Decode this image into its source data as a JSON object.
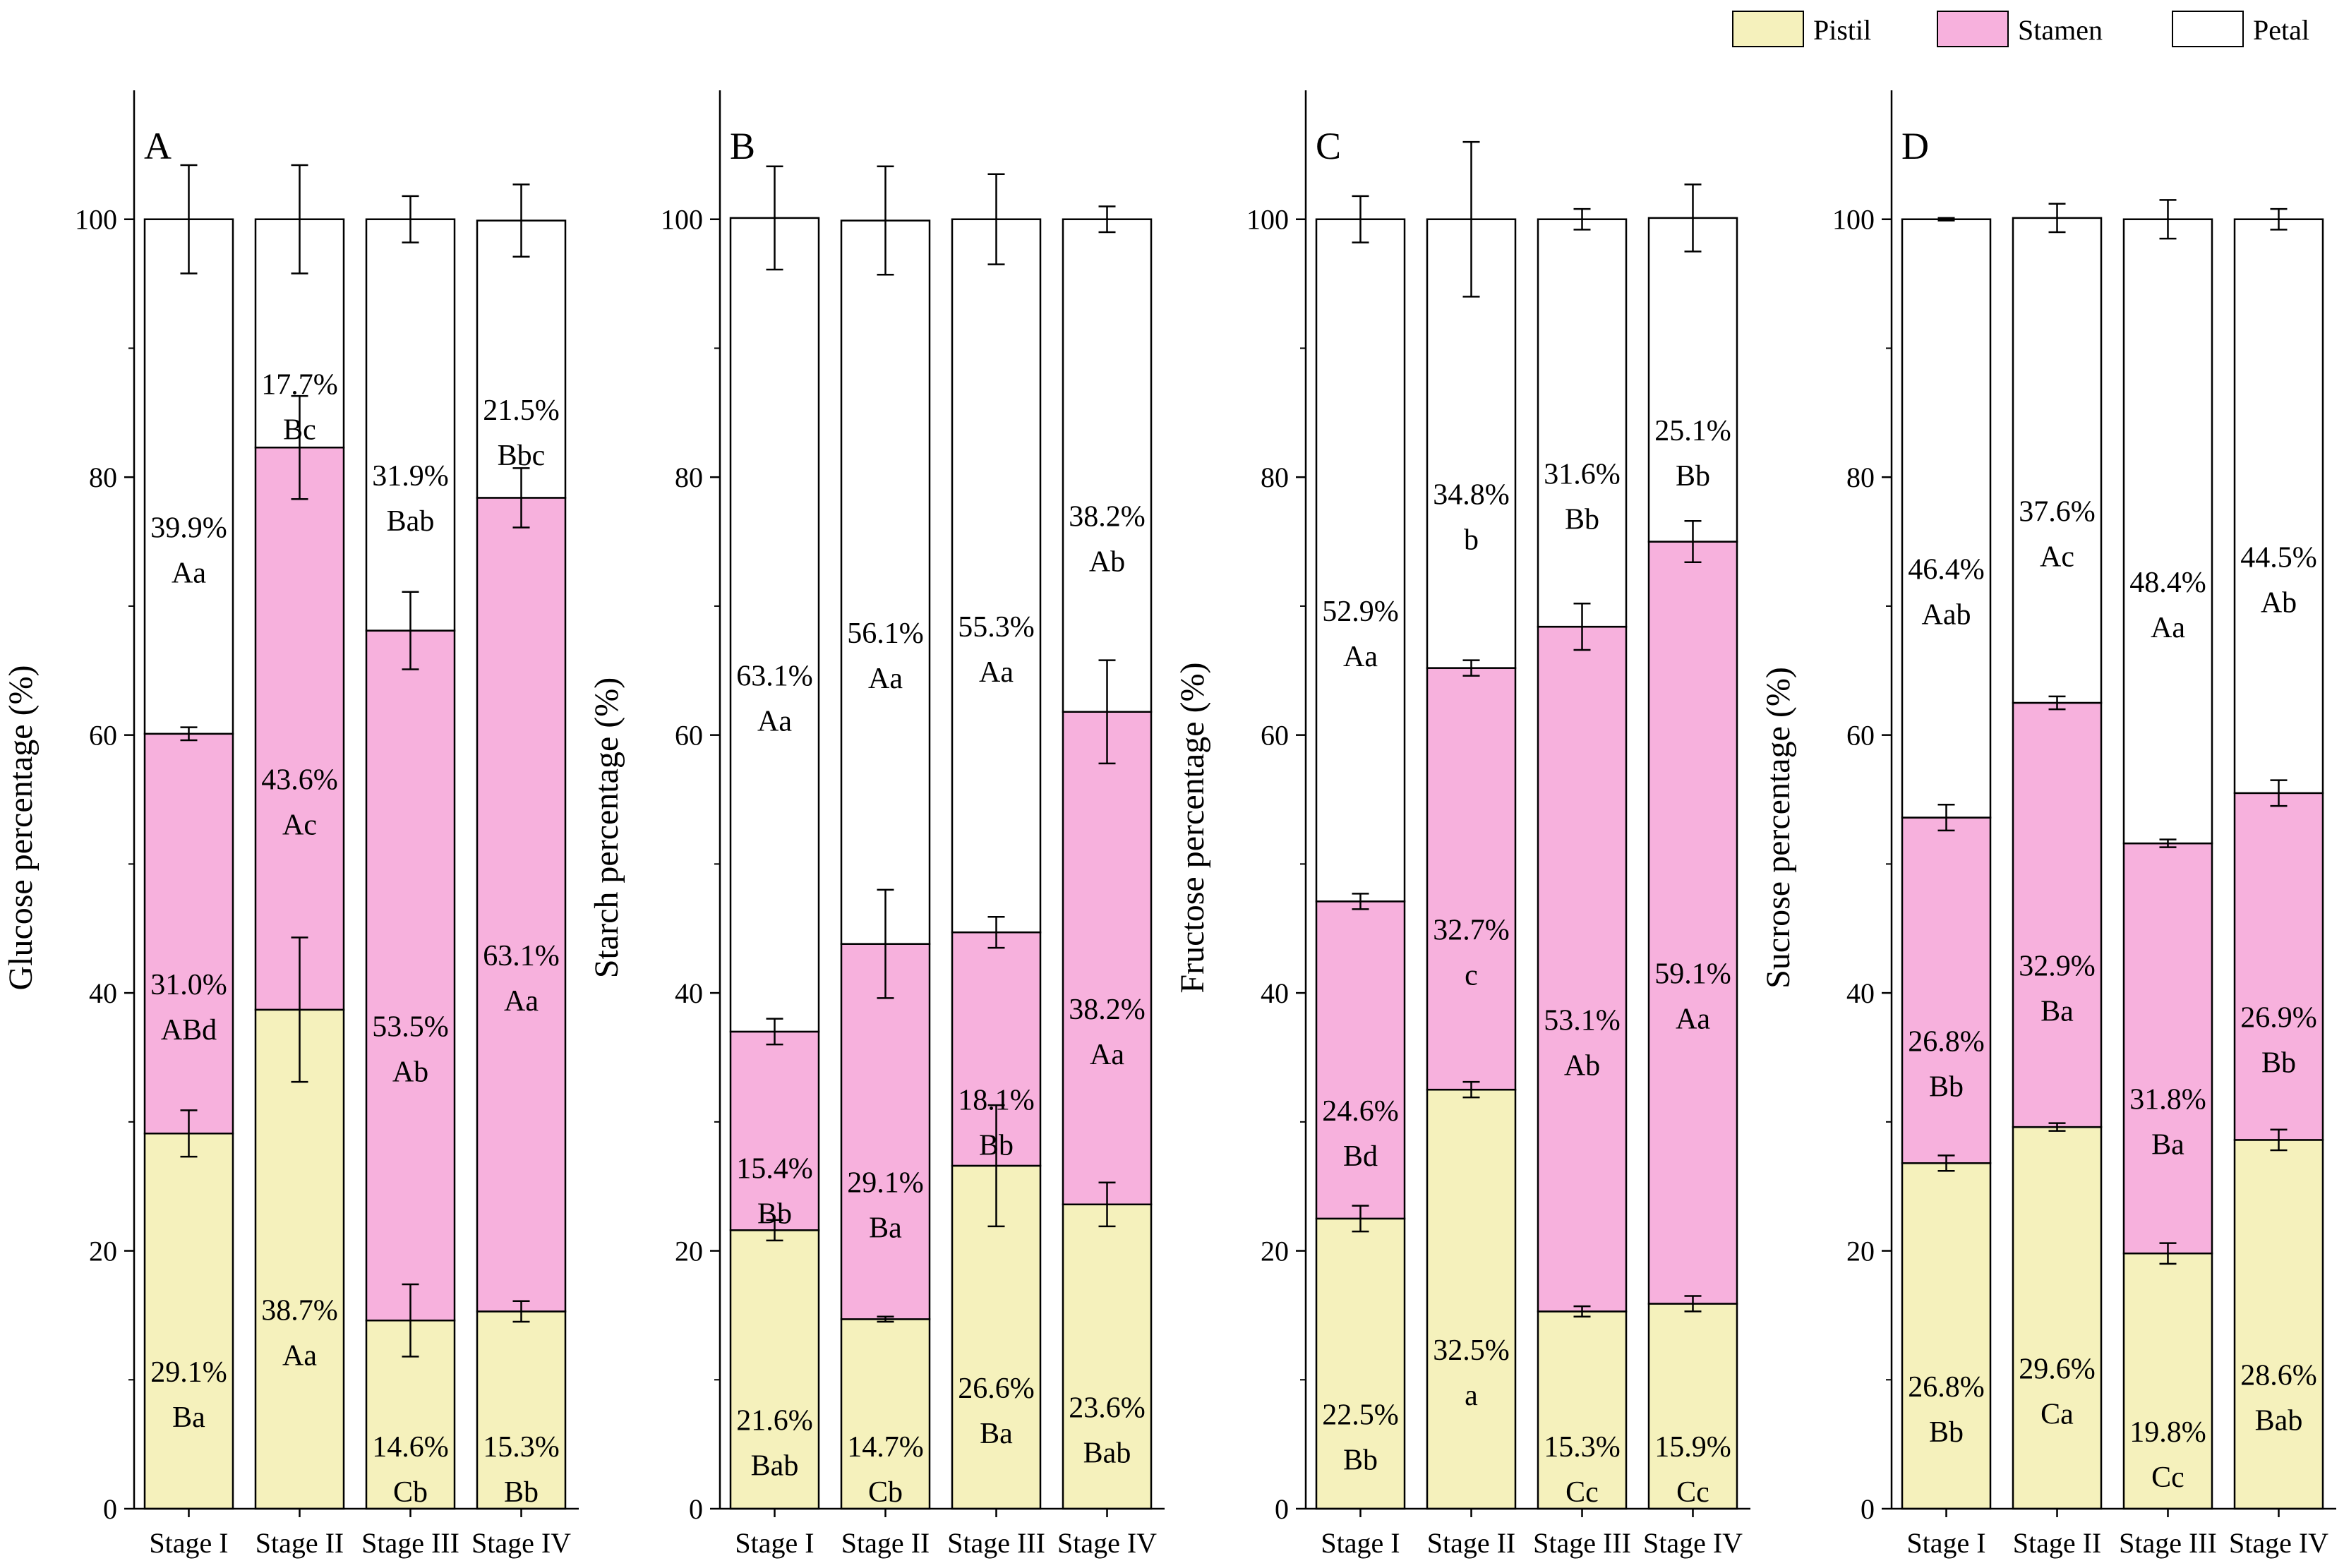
{
  "colors": {
    "pistil": "#f5f1bc",
    "stamen": "#f7b1dd",
    "petal": "#ffffff",
    "stroke": "#000000"
  },
  "legend": [
    {
      "key": "pistil",
      "label": "Pistil"
    },
    {
      "key": "stamen",
      "label": "Stamen"
    },
    {
      "key": "petal",
      "label": "Petal"
    }
  ],
  "chart_data": [
    {
      "type": "bar",
      "stacked": true,
      "panel": "A",
      "ylabel": "Glucose percentage (%)",
      "ylim": [
        0,
        110
      ],
      "yticks": [
        0,
        20,
        40,
        60,
        80,
        100
      ],
      "categories": [
        "Stage I",
        "Stage II",
        "Stage III",
        "Stage IV"
      ],
      "series": [
        {
          "name": "Pistil",
          "key": "pistil",
          "values": [
            29.1,
            38.7,
            14.6,
            15.3
          ],
          "errors": [
            1.8,
            5.6,
            2.8,
            0.8
          ],
          "labels": [
            "29.1%",
            "38.7%",
            "14.6%",
            "15.3%"
          ],
          "letters": [
            "Ba",
            "Aa",
            "Cb",
            "Bb"
          ]
        },
        {
          "name": "Stamen",
          "key": "stamen",
          "values": [
            31.0,
            43.6,
            53.5,
            63.1
          ],
          "errors": [
            0.5,
            4.0,
            3.0,
            2.3
          ],
          "labels": [
            "31.0%",
            "43.6%",
            "53.5%",
            "63.1%"
          ],
          "letters": [
            "ABd",
            "Ac",
            "Ab",
            "Aa"
          ]
        },
        {
          "name": "Petal",
          "key": "petal",
          "values": [
            39.9,
            17.7,
            31.9,
            21.5
          ],
          "errors": [
            4.2,
            4.2,
            1.8,
            2.8
          ],
          "labels": [
            "39.9%",
            "17.7%",
            "31.9%",
            "21.5%"
          ],
          "letters": [
            "Aa",
            "Bc",
            "Bab",
            "Bbc"
          ]
        }
      ]
    },
    {
      "type": "bar",
      "stacked": true,
      "panel": "B",
      "ylabel": "Starch percentage (%)",
      "ylim": [
        0,
        110
      ],
      "yticks": [
        0,
        20,
        40,
        60,
        80,
        100
      ],
      "categories": [
        "Stage I",
        "Stage II",
        "Stage III",
        "Stage IV"
      ],
      "series": [
        {
          "name": "Pistil",
          "key": "pistil",
          "values": [
            21.6,
            14.7,
            26.6,
            23.6
          ],
          "errors": [
            0.8,
            0.2,
            4.7,
            1.7
          ],
          "labels": [
            "21.6%",
            "14.7%",
            "26.6%",
            "23.6%"
          ],
          "letters": [
            "Bab",
            "Cb",
            "Ba",
            "Bab"
          ]
        },
        {
          "name": "Stamen",
          "key": "stamen",
          "values": [
            15.4,
            29.1,
            18.1,
            38.2
          ],
          "errors": [
            1.0,
            4.2,
            1.2,
            4.0
          ],
          "labels": [
            "15.4%",
            "29.1%",
            "18.1%",
            "38.2%"
          ],
          "letters": [
            "Bb",
            "Ba",
            "Bb",
            "Aa"
          ]
        },
        {
          "name": "Petal",
          "key": "petal",
          "values": [
            63.1,
            56.1,
            55.3,
            38.2
          ],
          "errors": [
            4.0,
            4.2,
            3.5,
            1.0
          ],
          "labels": [
            "63.1%",
            "56.1%",
            "55.3%",
            "38.2%"
          ],
          "letters": [
            "Aa",
            "Aa",
            "Aa",
            "Ab"
          ]
        }
      ]
    },
    {
      "type": "bar",
      "stacked": true,
      "panel": "C",
      "ylabel": "Fructose percentage (%)",
      "ylim": [
        0,
        110
      ],
      "yticks": [
        0,
        20,
        40,
        60,
        80,
        100
      ],
      "categories": [
        "Stage I",
        "Stage II",
        "Stage III",
        "Stage IV"
      ],
      "series": [
        {
          "name": "Pistil",
          "key": "pistil",
          "values": [
            22.5,
            32.5,
            15.3,
            15.9
          ],
          "errors": [
            1.0,
            0.6,
            0.4,
            0.6
          ],
          "labels": [
            "22.5%",
            "32.5%",
            "15.3%",
            "15.9%"
          ],
          "letters": [
            "Bb",
            "a",
            "Cc",
            "Cc"
          ]
        },
        {
          "name": "Stamen",
          "key": "stamen",
          "values": [
            24.6,
            32.7,
            53.1,
            59.1
          ],
          "errors": [
            0.6,
            0.6,
            1.8,
            1.6
          ],
          "labels": [
            "24.6%",
            "32.7%",
            "53.1%",
            "59.1%"
          ],
          "letters": [
            "Bd",
            "c",
            "Ab",
            "Aa"
          ]
        },
        {
          "name": "Petal",
          "key": "petal",
          "values": [
            52.9,
            34.8,
            31.6,
            25.1
          ],
          "errors": [
            1.8,
            6.0,
            0.8,
            2.6
          ],
          "labels": [
            "52.9%",
            "34.8%",
            "31.6%",
            "25.1%"
          ],
          "letters": [
            "Aa",
            "b",
            "Bb",
            "Bb"
          ]
        }
      ]
    },
    {
      "type": "bar",
      "stacked": true,
      "panel": "D",
      "ylabel": "Sucrose percentage (%)",
      "ylim": [
        0,
        110
      ],
      "yticks": [
        0,
        20,
        40,
        60,
        80,
        100
      ],
      "categories": [
        "Stage I",
        "Stage II",
        "Stage III",
        "Stage IV"
      ],
      "series": [
        {
          "name": "Pistil",
          "key": "pistil",
          "values": [
            26.8,
            29.6,
            19.8,
            28.6
          ],
          "errors": [
            0.6,
            0.3,
            0.8,
            0.8
          ],
          "labels": [
            "26.8%",
            "29.6%",
            "19.8%",
            "28.6%"
          ],
          "letters": [
            "Bb",
            "Ca",
            "Cc",
            "Bab"
          ]
        },
        {
          "name": "Stamen",
          "key": "stamen",
          "values": [
            26.8,
            32.9,
            31.8,
            26.9
          ],
          "errors": [
            1.0,
            0.5,
            0.3,
            1.0
          ],
          "labels": [
            "26.8%",
            "32.9%",
            "31.8%",
            "26.9%"
          ],
          "letters": [
            "Bb",
            "Ba",
            "Ba",
            "Bb"
          ]
        },
        {
          "name": "Petal",
          "key": "petal",
          "values": [
            46.4,
            37.6,
            48.4,
            44.5
          ],
          "errors": [
            0.1,
            1.1,
            1.5,
            0.8
          ],
          "labels": [
            "46.4%",
            "37.6%",
            "48.4%",
            "44.5%"
          ],
          "letters": [
            "Aab",
            "Ac",
            "Aa",
            "Ab"
          ]
        }
      ]
    }
  ]
}
